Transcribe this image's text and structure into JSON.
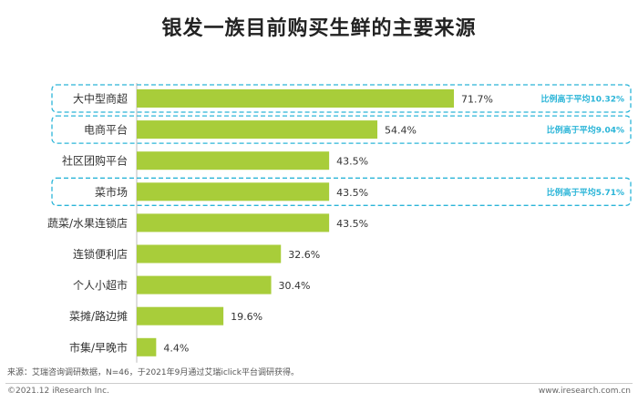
{
  "title": "银发一族目前购买生鲜的主要来源",
  "chart_data": {
    "type": "bar",
    "orientation": "horizontal",
    "categories": [
      "大中型商超",
      "电商平台",
      "社区团购平台",
      "菜市场",
      "蔬菜/水果连锁店",
      "连锁便利店",
      "个人小超市",
      "菜摊/路边摊",
      "市集/早晚市"
    ],
    "values": [
      71.7,
      54.4,
      43.5,
      43.5,
      43.5,
      32.6,
      30.4,
      19.6,
      4.4
    ],
    "value_labels": [
      "71.7%",
      "54.4%",
      "43.5%",
      "43.5%",
      "43.5%",
      "32.6%",
      "30.4%",
      "19.6%",
      "4.4%"
    ],
    "title": "银发一族目前购买生鲜的主要来源",
    "xlabel": "",
    "ylabel": "",
    "xlim": [
      0,
      100
    ],
    "grid": false,
    "highlights": [
      {
        "category_index": 0,
        "text": "比例高于平均10.32%"
      },
      {
        "category_index": 1,
        "text": "比例高于平均9.04%"
      },
      {
        "category_index": 3,
        "text": "比例高于平均5.71%"
      }
    ]
  },
  "colors": {
    "bar": "#a8cd3a",
    "highlight": "#2bb5d8",
    "highlight_text": "#2bb5d8",
    "label_text": "#333333",
    "axis": "#bbbbbb"
  },
  "source": "来源：艾瑞咨询调研数据，N=46，于2021年9月通过艾瑞iclick平台调研获得。",
  "footer": {
    "copyright": "©2021.12 iResearch Inc.",
    "website": "www.iresearch.com.cn"
  }
}
